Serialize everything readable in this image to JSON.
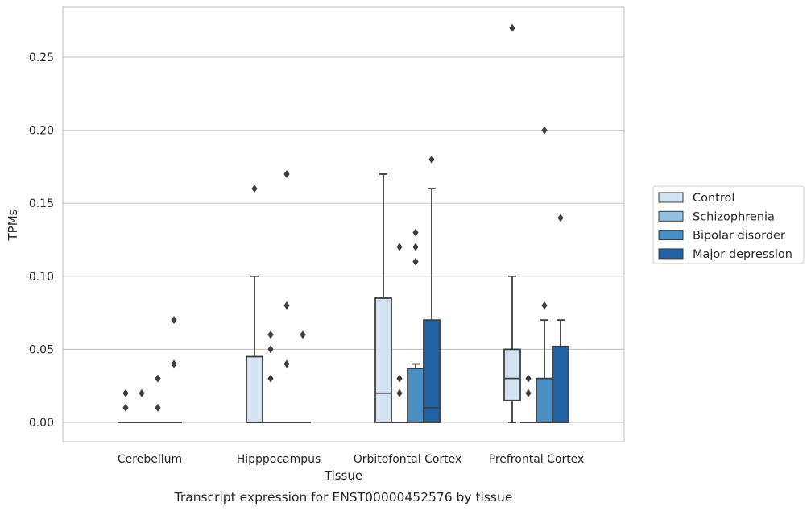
{
  "chart_data": {
    "type": "box",
    "title": "",
    "caption": "Transcript expression for ENST00000452576 by tissue",
    "xlabel": "Tissue",
    "ylabel": "TPMs",
    "ylim": [
      -0.013,
      0.284
    ],
    "yticks": [
      "0.00",
      "0.05",
      "0.10",
      "0.15",
      "0.20",
      "0.25"
    ],
    "grid": true,
    "legend_position": "right",
    "categories": [
      "Cerebellum",
      "Hipppocampus",
      "Orbitofontal Cortex",
      "Prefrontal Cortex"
    ],
    "series": [
      {
        "name": "Control",
        "color": "#d4e3f2"
      },
      {
        "name": "Schizophrenia",
        "color": "#94c1df"
      },
      {
        "name": "Bipolar disorder",
        "color": "#4a8fc3"
      },
      {
        "name": "Major depression",
        "color": "#2161a4"
      }
    ],
    "boxes": [
      [
        {
          "q1": 0,
          "median": 0,
          "q3": 0,
          "whisker_low": 0,
          "whisker_high": 0,
          "outliers": [
            0.01,
            0.02
          ]
        },
        {
          "q1": 0,
          "median": 0,
          "q3": 0,
          "whisker_low": 0,
          "whisker_high": 0,
          "outliers": [
            0.02
          ]
        },
        {
          "q1": 0,
          "median": 0,
          "q3": 0,
          "whisker_low": 0,
          "whisker_high": 0,
          "outliers": [
            0.01,
            0.03
          ]
        },
        {
          "q1": 0,
          "median": 0,
          "q3": 0,
          "whisker_low": 0,
          "whisker_high": 0,
          "outliers": [
            0.04,
            0.07
          ]
        }
      ],
      [
        {
          "q1": 0,
          "median": 0,
          "q3": 0.045,
          "whisker_low": 0,
          "whisker_high": 0.1,
          "outliers": [
            0.16
          ]
        },
        {
          "q1": 0,
          "median": 0,
          "q3": 0,
          "whisker_low": 0,
          "whisker_high": 0,
          "outliers": [
            0.03,
            0.05,
            0.06
          ]
        },
        {
          "q1": 0,
          "median": 0,
          "q3": 0,
          "whisker_low": 0,
          "whisker_high": 0,
          "outliers": [
            0.04,
            0.08,
            0.17
          ]
        },
        {
          "q1": 0,
          "median": 0,
          "q3": 0,
          "whisker_low": 0,
          "whisker_high": 0,
          "outliers": [
            0.06
          ]
        }
      ],
      [
        {
          "q1": 0,
          "median": 0.02,
          "q3": 0.085,
          "whisker_low": 0,
          "whisker_high": 0.17,
          "outliers": []
        },
        {
          "q1": 0,
          "median": 0,
          "q3": 0,
          "whisker_low": 0,
          "whisker_high": 0,
          "outliers": [
            0.02,
            0.03,
            0.12
          ]
        },
        {
          "q1": 0,
          "median": 0.037,
          "q3": 0.037,
          "whisker_low": 0,
          "whisker_high": 0.04,
          "outliers": [
            0.11,
            0.12,
            0.13
          ]
        },
        {
          "q1": 0,
          "median": 0.01,
          "q3": 0.07,
          "whisker_low": 0,
          "whisker_high": 0.16,
          "outliers": [
            0.18
          ]
        }
      ],
      [
        {
          "q1": 0.015,
          "median": 0.03,
          "q3": 0.05,
          "whisker_low": 0,
          "whisker_high": 0.1,
          "outliers": [
            0.27
          ]
        },
        {
          "q1": 0,
          "median": 0,
          "q3": 0,
          "whisker_low": 0,
          "whisker_high": 0,
          "outliers": [
            0.02,
            0.03
          ]
        },
        {
          "q1": 0,
          "median": 0,
          "q3": 0.03,
          "whisker_low": 0,
          "whisker_high": 0.07,
          "outliers": [
            0.08,
            0.2
          ]
        },
        {
          "q1": 0,
          "median": 0,
          "q3": 0.052,
          "whisker_low": 0,
          "whisker_high": 0.07,
          "outliers": [
            0.14
          ]
        }
      ]
    ]
  }
}
